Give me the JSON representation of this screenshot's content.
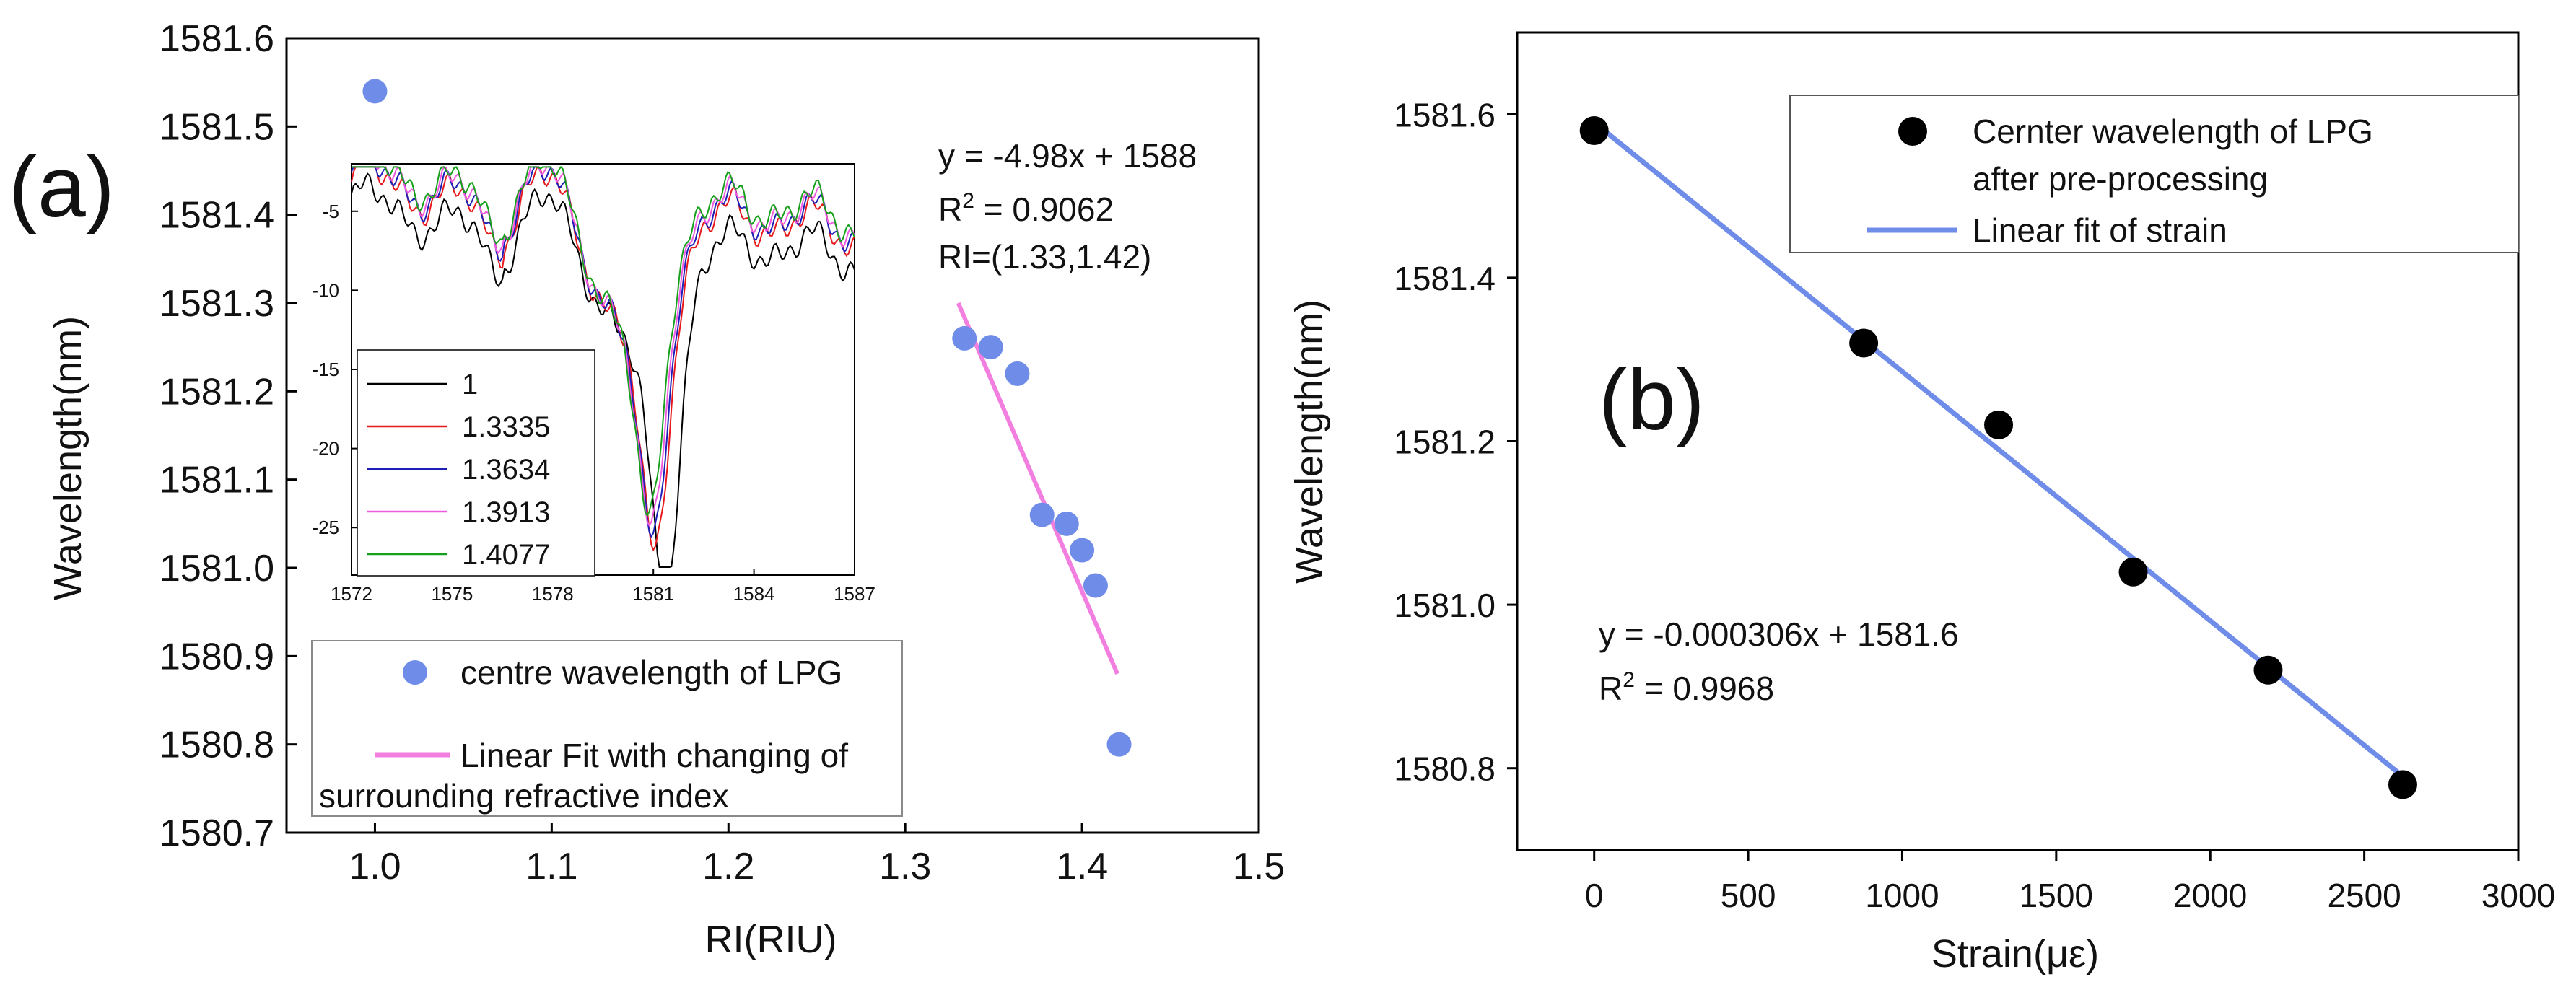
{
  "chart_data": [
    {
      "type": "scatter",
      "panel_label": "(a)",
      "xlabel": "RI(RIU)",
      "ylabel": "Wavelength(nm)",
      "xlim": [
        0.95,
        1.5
      ],
      "ylim": [
        1580.7,
        1581.6
      ],
      "xticks": [
        "1.0",
        "1.1",
        "1.2",
        "1.3",
        "1.4",
        "1.5"
      ],
      "yticks": [
        "1580.7",
        "1580.8",
        "1580.9",
        "1581.0",
        "1581.1",
        "1581.2",
        "1581.3",
        "1581.4",
        "1581.5",
        "1581.6"
      ],
      "series": [
        {
          "name": "centre wavelength of LPG",
          "color": "#6f8de8",
          "points": [
            {
              "x": 1.0,
              "y": 1581.54
            },
            {
              "x": 1.3335,
              "y": 1581.26
            },
            {
              "x": 1.3484,
              "y": 1581.25
            },
            {
              "x": 1.3634,
              "y": 1581.22
            },
            {
              "x": 1.3774,
              "y": 1581.06
            },
            {
              "x": 1.3913,
              "y": 1581.05
            },
            {
              "x": 1.4,
              "y": 1581.02
            },
            {
              "x": 1.4077,
              "y": 1580.98
            },
            {
              "x": 1.421,
              "y": 1580.8
            }
          ]
        },
        {
          "name": "Linear Fit with changing of surrounding refractive index",
          "color": "#f27ee0",
          "line": [
            {
              "x": 1.33,
              "y": 1581.3
            },
            {
              "x": 1.42,
              "y": 1580.88
            }
          ]
        }
      ],
      "annotation": {
        "equation": "y = -4.98x + 1588",
        "r2_prefix": "R",
        "r2_sup": "2",
        "r2_value": " = 0.9062",
        "range": "RI=(1.33,1.42)"
      },
      "legend": {
        "line1": "centre wavelength of LPG",
        "line2": "Linear Fit with changing of",
        "line3": "surrounding refractive index"
      },
      "inset": {
        "type": "line",
        "xlim": [
          1572,
          1587
        ],
        "ylim": [
          -28,
          -2
        ],
        "xticks": [
          "1572",
          "1575",
          "1578",
          "1581",
          "1584",
          "1587"
        ],
        "yticks": [
          "-5",
          "-10",
          "-15",
          "-20",
          "-25"
        ],
        "series": [
          {
            "name": "1",
            "color": "#000000"
          },
          {
            "name": "1.3335",
            "color": "#e8191c"
          },
          {
            "name": "1.3634",
            "color": "#1d1fb8"
          },
          {
            "name": "1.3913",
            "color": "#f05ae0"
          },
          {
            "name": "1.4077",
            "color": "#16a01b"
          }
        ]
      }
    },
    {
      "type": "scatter",
      "panel_label": "(b)",
      "xlabel": "Strain(με)",
      "ylabel": "Wavelength(nm)",
      "xlim": [
        -250,
        3000
      ],
      "ylim": [
        1580.7,
        1581.7
      ],
      "xticks": [
        "0",
        "500",
        "1000",
        "1500",
        "2000",
        "2500",
        "3000"
      ],
      "yticks": [
        "1580.8",
        "1581.0",
        "1581.2",
        "1581.4",
        "1581.6"
      ],
      "series": [
        {
          "name": "Cernter wavelength of LPG after pre-processing",
          "color": "#000000",
          "points": [
            {
              "x": 0,
              "y": 1581.58
            },
            {
              "x": 875,
              "y": 1581.32
            },
            {
              "x": 1313,
              "y": 1581.22
            },
            {
              "x": 1750,
              "y": 1581.04
            },
            {
              "x": 2188,
              "y": 1580.92
            },
            {
              "x": 2625,
              "y": 1580.78
            }
          ]
        },
        {
          "name": "Linear fit of strain",
          "color": "#6f8de8",
          "line": [
            {
              "x": 0,
              "y": 1581.59
            },
            {
              "x": 2625,
              "y": 1580.79
            }
          ]
        }
      ],
      "annotation": {
        "equation": "y = -0.000306x + 1581.6",
        "r2_prefix": "R",
        "r2_sup": "2",
        "r2_value": " = 0.9968"
      },
      "legend": {
        "line1": "Cernter wavelength of LPG",
        "line2": "after pre-processing",
        "line3": "Linear fit of strain"
      }
    }
  ]
}
